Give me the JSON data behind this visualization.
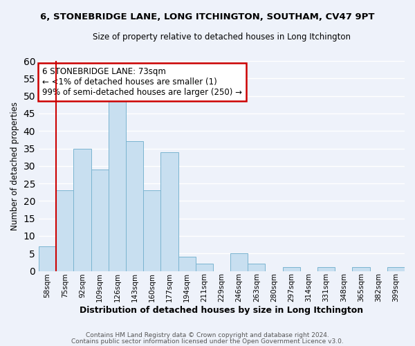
{
  "title": "6, STONEBRIDGE LANE, LONG ITCHINGTON, SOUTHAM, CV47 9PT",
  "subtitle": "Size of property relative to detached houses in Long Itchington",
  "xlabel": "Distribution of detached houses by size in Long Itchington",
  "ylabel": "Number of detached properties",
  "bar_labels": [
    "58sqm",
    "75sqm",
    "92sqm",
    "109sqm",
    "126sqm",
    "143sqm",
    "160sqm",
    "177sqm",
    "194sqm",
    "211sqm",
    "229sqm",
    "246sqm",
    "263sqm",
    "280sqm",
    "297sqm",
    "314sqm",
    "331sqm",
    "348sqm",
    "365sqm",
    "382sqm",
    "399sqm"
  ],
  "bar_values": [
    7,
    23,
    35,
    29,
    50,
    37,
    23,
    34,
    4,
    2,
    0,
    5,
    2,
    0,
    1,
    0,
    1,
    0,
    1,
    0,
    1
  ],
  "bar_color": "#c8dff0",
  "bar_edge_color": "#7ab4d0",
  "annotation_box_text": "6 STONEBRIDGE LANE: 73sqm\n← <1% of detached houses are smaller (1)\n99% of semi-detached houses are larger (250) →",
  "annotation_box_edge_color": "#cc0000",
  "annotation_box_bg": "#ffffff",
  "vline_color": "#cc0000",
  "ylim": [
    0,
    60
  ],
  "yticks": [
    0,
    5,
    10,
    15,
    20,
    25,
    30,
    35,
    40,
    45,
    50,
    55,
    60
  ],
  "footer_line1": "Contains HM Land Registry data © Crown copyright and database right 2024.",
  "footer_line2": "Contains public sector information licensed under the Open Government Licence v3.0.",
  "bg_color": "#eef2fa",
  "grid_color": "#ffffff",
  "title_fontsize": 9.5,
  "subtitle_fontsize": 8.5,
  "ylabel_fontsize": 8.5,
  "xlabel_fontsize": 9.0,
  "tick_fontsize": 7.5,
  "footer_fontsize": 6.5
}
